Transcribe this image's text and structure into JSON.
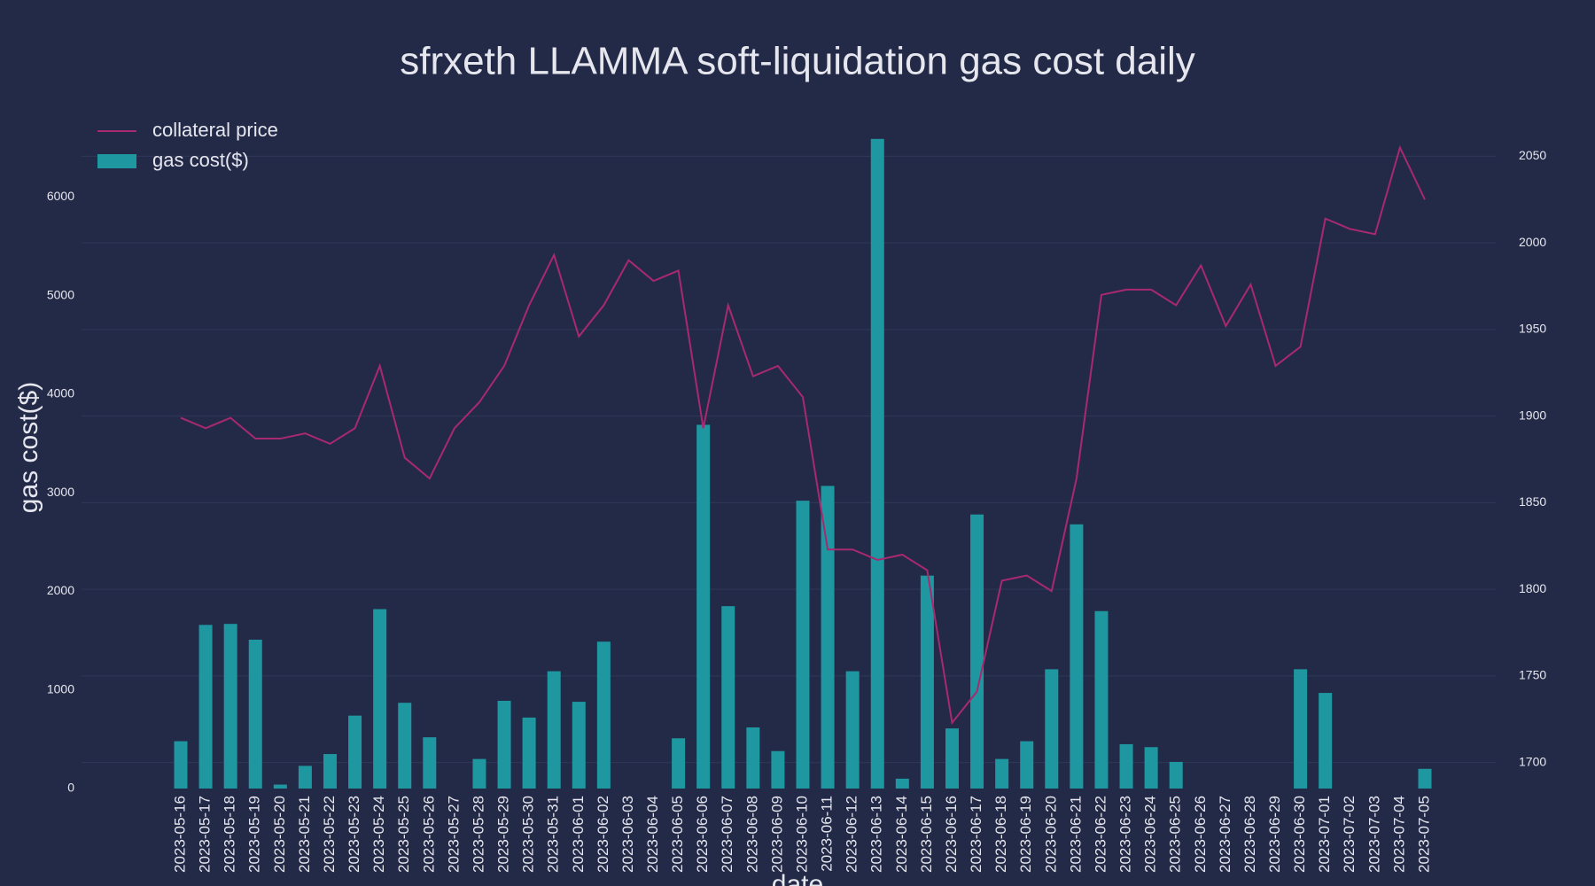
{
  "chart_data": {
    "type": "bar_line",
    "title": "sfrxeth LLAMMA soft-liquidation gas cost daily",
    "x_label": "date",
    "y_label": "gas cost($)",
    "categories": [
      "2023-05-16",
      "2023-05-17",
      "2023-05-18",
      "2023-05-19",
      "2023-05-20",
      "2023-05-21",
      "2023-05-22",
      "2023-05-23",
      "2023-05-24",
      "2023-05-25",
      "2023-05-26",
      "2023-05-27",
      "2023-05-28",
      "2023-05-29",
      "2023-05-30",
      "2023-05-31",
      "2023-06-01",
      "2023-06-02",
      "2023-06-03",
      "2023-06-04",
      "2023-06-05",
      "2023-06-06",
      "2023-06-07",
      "2023-06-08",
      "2023-06-09",
      "2023-06-10",
      "2023-06-11",
      "2023-06-12",
      "2023-06-13",
      "2023-06-14",
      "2023-06-15",
      "2023-06-16",
      "2023-06-17",
      "2023-06-18",
      "2023-06-19",
      "2023-06-20",
      "2023-06-21",
      "2023-06-22",
      "2023-06-23",
      "2023-06-24",
      "2023-06-25",
      "2023-06-26",
      "2023-06-27",
      "2023-06-28",
      "2023-06-29",
      "2023-06-30",
      "2023-07-01",
      "2023-07-02",
      "2023-07-03",
      "2023-07-04",
      "2023-07-05"
    ],
    "series": [
      {
        "name": "collateral price",
        "type": "line",
        "axis": "y2",
        "color": "#a8296f",
        "values": [
          1899,
          1893,
          1899,
          1887,
          1887,
          1890,
          1884,
          1893,
          1929,
          1876,
          1864,
          1893,
          1908,
          1929,
          1964,
          1993,
          1946,
          1964,
          1990,
          1978,
          1984,
          1893,
          1964,
          1923,
          1929,
          1911,
          1823,
          1823,
          1817,
          1820,
          1811,
          1723,
          1741,
          1805,
          1808,
          1799,
          1864,
          1970,
          1973,
          1973,
          1964,
          1987,
          1952,
          1976,
          1929,
          1940,
          2014,
          2008,
          2005,
          2055,
          2025
        ]
      },
      {
        "name": "gas cost($)",
        "type": "bar",
        "color": "#1f97a0",
        "values": [
          480,
          1660,
          1670,
          1510,
          40,
          230,
          350,
          740,
          1820,
          870,
          520,
          0,
          300,
          890,
          720,
          1190,
          880,
          1490,
          0,
          0,
          510,
          3690,
          1850,
          620,
          380,
          2920,
          3070,
          1190,
          6590,
          100,
          2160,
          610,
          2780,
          300,
          480,
          1210,
          2680,
          1800,
          450,
          420,
          270,
          0,
          0,
          0,
          0,
          1210,
          970,
          0,
          0,
          0,
          200
        ]
      }
    ],
    "ylim": [
      0,
      6660
    ],
    "yticks": [
      0,
      1000,
      2000,
      3000,
      4000,
      5000,
      6000
    ],
    "y2lim": [
      1685,
      2064
    ],
    "y2ticks": [
      1700,
      1750,
      1800,
      1850,
      1900,
      1950,
      2000,
      2050
    ],
    "grid": true,
    "legend": "upper left"
  }
}
